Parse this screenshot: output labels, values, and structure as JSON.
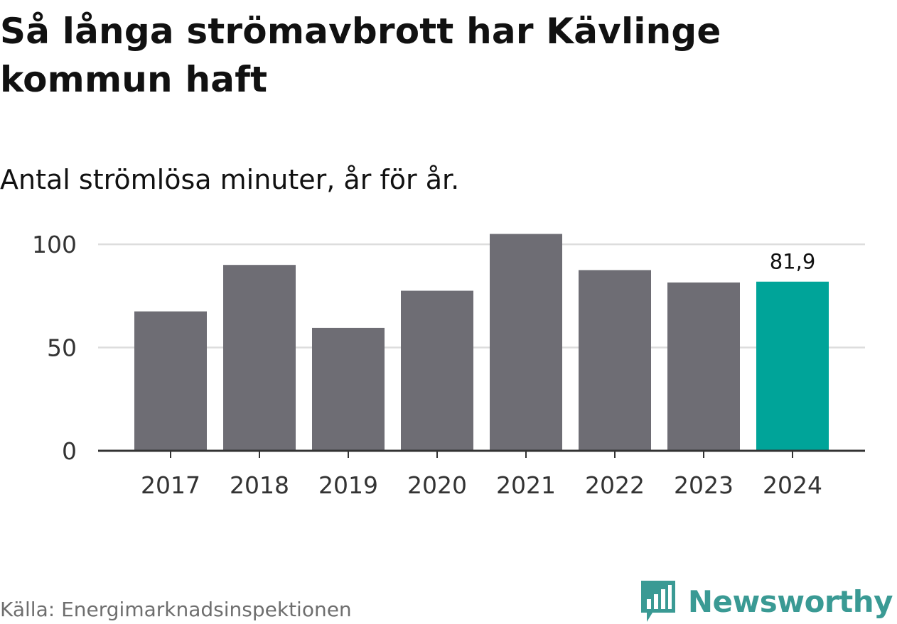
{
  "header": {
    "title": "Så långa strömavbrott har Kävlinge kommun haft",
    "subtitle": "Antal strömlösa minuter, år för år."
  },
  "footer": {
    "source": "Källa: Energimarknadsinspektionen",
    "brand": "Newsworthy",
    "brand_icon": "newsworthy-logo-icon"
  },
  "colors": {
    "bar": "#6e6d74",
    "highlight": "#00a499",
    "grid": "#dddddd",
    "axis": "#333333",
    "brand": "#3a9a94"
  },
  "chart_data": {
    "type": "bar",
    "title": "Så långa strömavbrott har Kävlinge kommun haft",
    "subtitle": "Antal strömlösa minuter, år för år.",
    "xlabel": "",
    "ylabel": "",
    "categories": [
      "2017",
      "2018",
      "2019",
      "2020",
      "2021",
      "2022",
      "2023",
      "2024"
    ],
    "values": [
      67.5,
      90,
      59.5,
      77.5,
      105,
      87.5,
      81.5,
      81.9
    ],
    "highlight_index": 7,
    "data_labels": [
      {
        "index": 7,
        "text": "81,9"
      }
    ],
    "yticks": [
      0,
      50,
      100
    ],
    "ytick_labels": [
      "0",
      "50",
      "100"
    ],
    "ylim": [
      0,
      110
    ],
    "grid": true,
    "legend": "none"
  }
}
